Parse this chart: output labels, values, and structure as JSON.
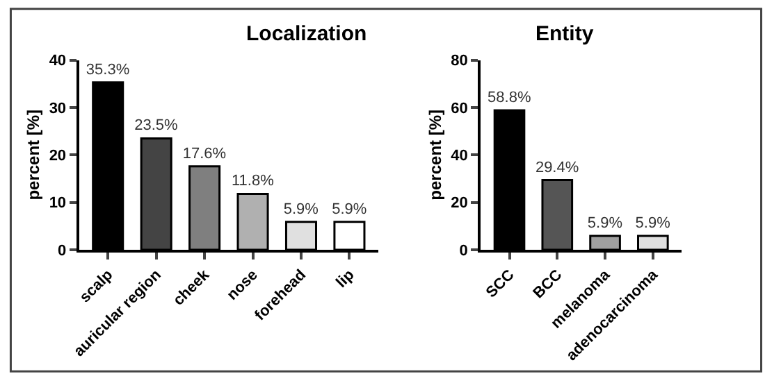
{
  "chart_data": [
    {
      "type": "bar",
      "title": "Localization",
      "ylabel": "percent [%]",
      "categories": [
        "scalp",
        "auricular region",
        "cheek",
        "nose",
        "forehead",
        "lip"
      ],
      "values": [
        35.3,
        23.5,
        17.6,
        11.8,
        5.9,
        5.9
      ],
      "colors": [
        "#000000",
        "#444444",
        "#7f7f7f",
        "#b0b0b0",
        "#e0e0e0",
        "#ffffff"
      ],
      "value_labels": [
        "35.3%",
        "23.5%",
        "17.6%",
        "11.8%",
        "5.9%",
        "5.9%"
      ],
      "ylim": [
        0,
        40
      ],
      "yticks": [
        0,
        10,
        20,
        30,
        40
      ]
    },
    {
      "type": "bar",
      "title": "Entity",
      "ylabel": "percent [%]",
      "categories": [
        "SCC",
        "BCC",
        "melanoma",
        "adenocarcinoma"
      ],
      "values": [
        58.8,
        29.4,
        5.9,
        5.9
      ],
      "colors": [
        "#000000",
        "#555555",
        "#a0a0a0",
        "#e0e0e0"
      ],
      "value_labels": [
        "58.8%",
        "29.4%",
        "5.9%",
        "5.9%"
      ],
      "ylim": [
        0,
        80
      ],
      "yticks": [
        0,
        20,
        40,
        60,
        80
      ]
    }
  ]
}
